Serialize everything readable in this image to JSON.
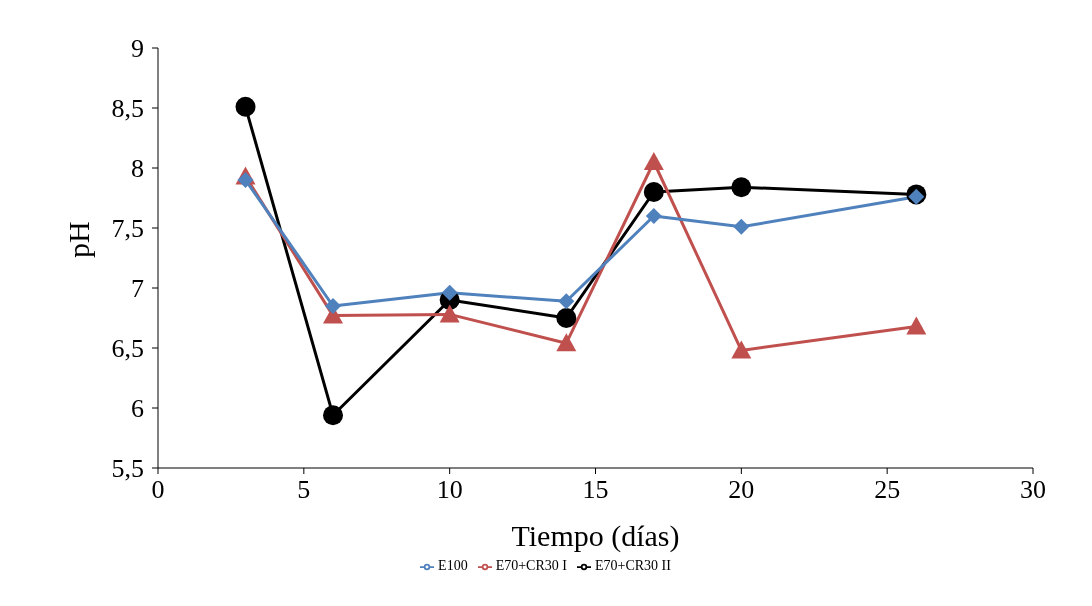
{
  "chart_data": {
    "type": "line",
    "xlabel": "Tiempo (días)",
    "ylabel": "pH",
    "x": [
      3,
      6,
      10,
      14,
      17,
      20,
      26
    ],
    "series": [
      {
        "name": "E100",
        "color": "#4f81bd",
        "marker": "diamond",
        "values": [
          7.9,
          6.85,
          6.96,
          6.89,
          7.6,
          7.51,
          7.76
        ]
      },
      {
        "name": "E70+CR30 I",
        "color": "#c0504d",
        "marker": "triangle",
        "values": [
          7.93,
          6.77,
          6.78,
          6.54,
          8.05,
          6.48,
          6.68
        ]
      },
      {
        "name": "E70+CR30 II",
        "color": "#000000",
        "marker": "circle",
        "values": [
          8.51,
          5.94,
          6.9,
          6.75,
          7.8,
          7.84,
          7.78
        ]
      }
    ],
    "xlim": [
      0,
      30
    ],
    "xticks": [
      0,
      5,
      10,
      15,
      20,
      25,
      30
    ],
    "ylim": [
      5.5,
      9
    ],
    "yticks": [
      {
        "value": 5.5,
        "label": "5,5"
      },
      6,
      {
        "value": 6.5,
        "label": "6,5"
      },
      7,
      {
        "value": 7.5,
        "label": "7,5"
      },
      8,
      {
        "value": 8.5,
        "label": "8,5"
      },
      9
    ],
    "grid": false,
    "legend": "bottom",
    "line_style": "solid"
  }
}
